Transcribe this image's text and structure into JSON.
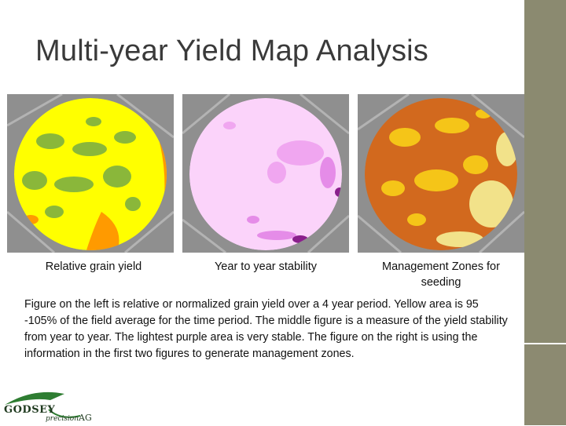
{
  "slide": {
    "title": "Multi-year Yield Map Analysis",
    "description": "Figure on the left is relative or normalized grain yield over a 4 year period. Yellow area is 95 -105% of the field average for the time period. The middle figure is a measure of the yield stability from year to year. The lightest purple area is very stable. The figure on the right is using the information in the first two figures to generate management zones."
  },
  "maps": [
    {
      "caption": "Relative grain yield",
      "image_name": "relative-grain-yield-map",
      "colors": {
        "base": "#ffff00",
        "patch": "#8ab73a",
        "edge": "#ff9a00",
        "hot": "#e00000"
      }
    },
    {
      "caption": "Year to year stability",
      "image_name": "year-to-year-stability-map",
      "colors": {
        "base": "#f7c6f5",
        "patch": "#e58ce8",
        "dark": "#8a1f8c"
      }
    },
    {
      "caption": "Management Zones for seeding",
      "image_name": "management-zones-map",
      "colors": {
        "base": "#d2691e",
        "patch": "#f5c518",
        "light": "#f2e28a"
      }
    }
  ],
  "logo": {
    "name": "GODSEY",
    "tagline": "precision AG"
  },
  "colors": {
    "sidebar": "#8b8a70",
    "title": "#3a3a3a"
  }
}
